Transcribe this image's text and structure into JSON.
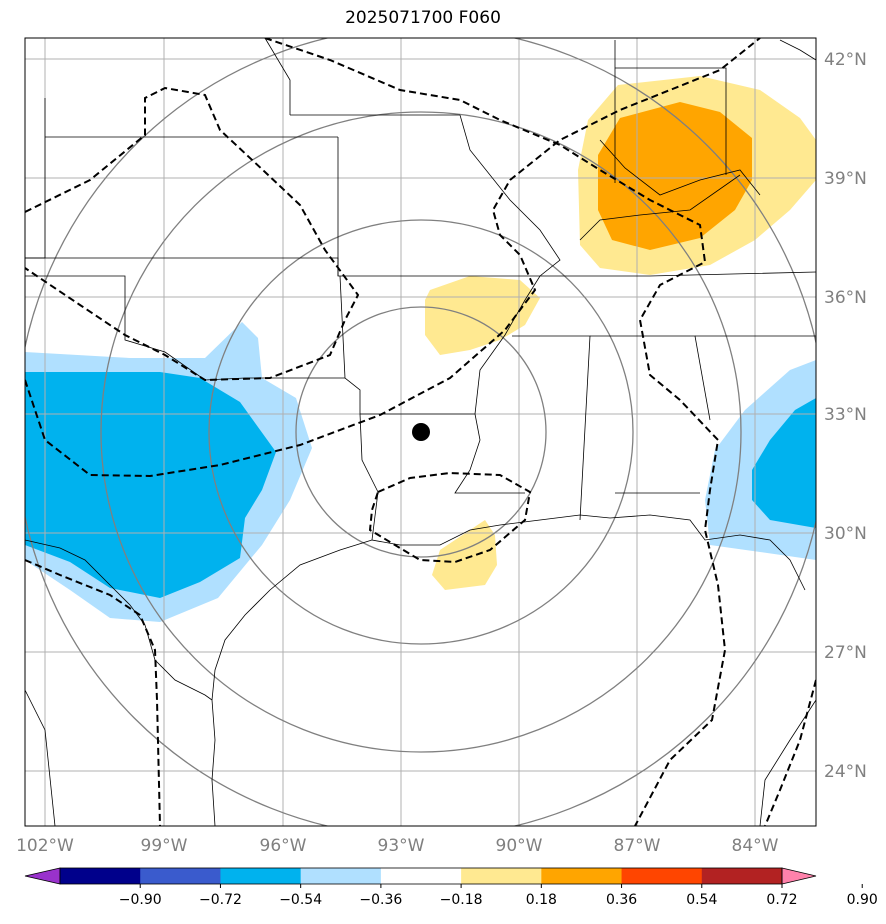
{
  "title": "2025071700 F060",
  "lat_labels": [
    "42°N",
    "39°N",
    "36°N",
    "33°N",
    "30°N",
    "27°N",
    "24°N"
  ],
  "lon_labels": [
    "102°W",
    "99°W",
    "96°W",
    "93°W",
    "90°W",
    "87°W",
    "84°W"
  ],
  "colorbar": {
    "ticks": [
      "−0.90",
      "−0.72",
      "−0.54",
      "−0.36",
      "−0.18",
      "0.18",
      "0.36",
      "0.54",
      "0.72",
      "0.90"
    ],
    "colors": [
      "#9932cc",
      "#00008b",
      "#3a5bcd",
      "#00b2ee",
      "#b0e0ff",
      "#ffffff",
      "#ffe991",
      "#ffa500",
      "#ff4500",
      "#b22222",
      "#ff82ab"
    ]
  },
  "colors": {
    "grid": "#b0b0b0",
    "range_rings": "#808080",
    "contour_dashed": "#000000",
    "fill_blue_light": "#b0e0ff",
    "fill_blue": "#00b2ee",
    "fill_yellow": "#ffe991",
    "fill_orange": "#ffa500"
  }
}
